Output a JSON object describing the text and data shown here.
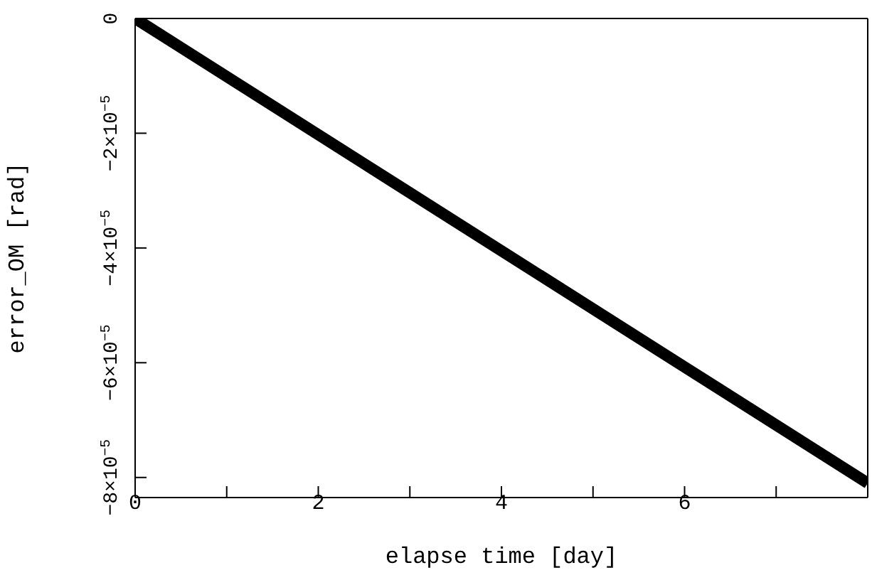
{
  "chart_data": {
    "type": "line",
    "xlabel": "elapse time [day]",
    "ylabel": "error_OM [rad]",
    "x": [
      0,
      8
    ],
    "series": [
      {
        "color": "#000000",
        "values": [
          0,
          -8.1e-05
        ]
      }
    ],
    "xlim": [
      0,
      8
    ],
    "ylim": [
      -8.35e-05,
      0
    ],
    "xticks": [
      0,
      {
        "value": 1,
        "label": null
      },
      2,
      {
        "value": 3,
        "label": null
      },
      4,
      {
        "value": 5,
        "label": null
      },
      6,
      {
        "value": 7,
        "label": null
      }
    ],
    "yticks": [
      {
        "value": 0,
        "label": "0"
      },
      {
        "value": -2e-05,
        "label": "−2×10$^{−5}$"
      },
      {
        "value": -4e-05,
        "label": "−4×10$^{−5}$"
      },
      {
        "value": -6e-05,
        "label": "−6×10$^{−5}$"
      },
      {
        "value": -8e-05,
        "label": "−8×10$^{−5}$"
      }
    ],
    "grid": false,
    "legend": false,
    "marker": "none",
    "line_style": "solid"
  }
}
